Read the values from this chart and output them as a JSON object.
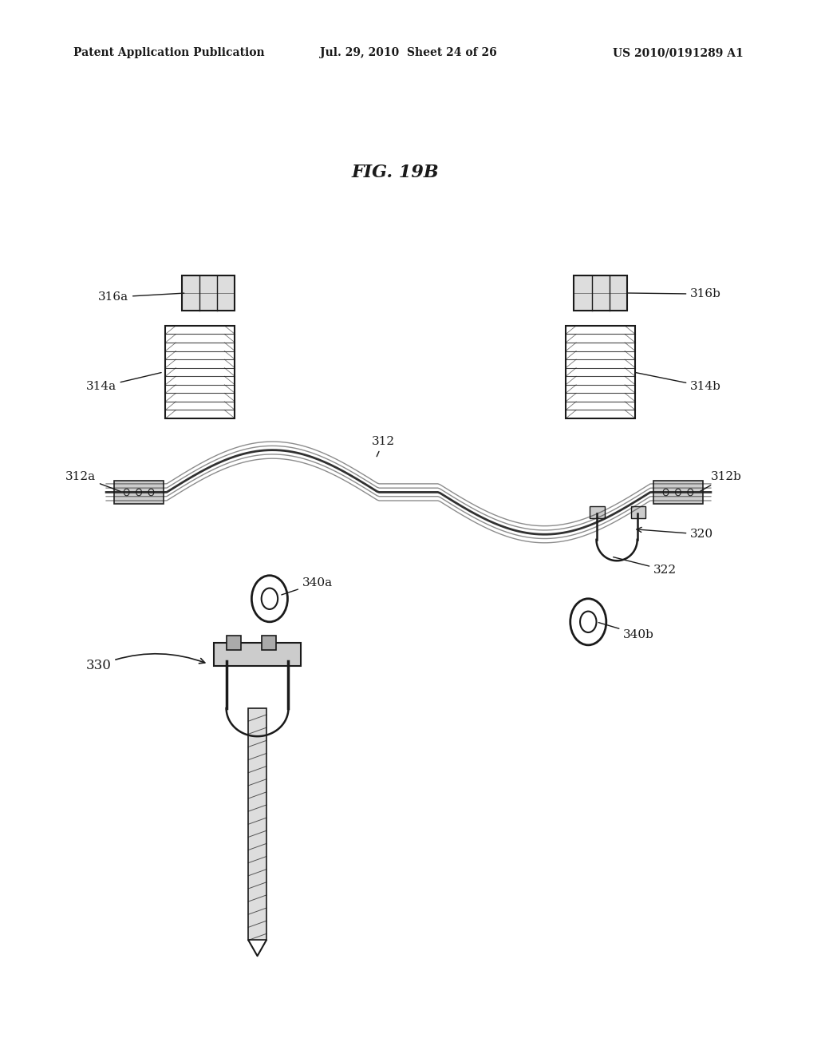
{
  "background_color": "#ffffff",
  "header_left": "Patent Application Publication",
  "header_center": "Jul. 29, 2010  Sheet 24 of 26",
  "header_right": "US 2010/0191289 A1",
  "figure_title": "FIG. 19B",
  "labels": {
    "316a": [
      0.175,
      0.705,
      "316a"
    ],
    "316b": [
      0.835,
      0.705,
      "316b"
    ],
    "314a": [
      0.175,
      0.615,
      "314a"
    ],
    "314b": [
      0.835,
      0.615,
      "314b"
    ],
    "312": [
      0.47,
      0.565,
      "312"
    ],
    "312a": [
      0.13,
      0.535,
      "312a"
    ],
    "312b": [
      0.84,
      0.535,
      "312b"
    ],
    "320": [
      0.84,
      0.475,
      "320"
    ],
    "322": [
      0.78,
      0.44,
      "322"
    ],
    "340a": [
      0.37,
      0.42,
      "340a"
    ],
    "340b": [
      0.785,
      0.395,
      "340b"
    ],
    "330": [
      0.12,
      0.37,
      "330"
    ]
  },
  "text_color": "#1a1a1a",
  "line_color": "#1a1a1a"
}
